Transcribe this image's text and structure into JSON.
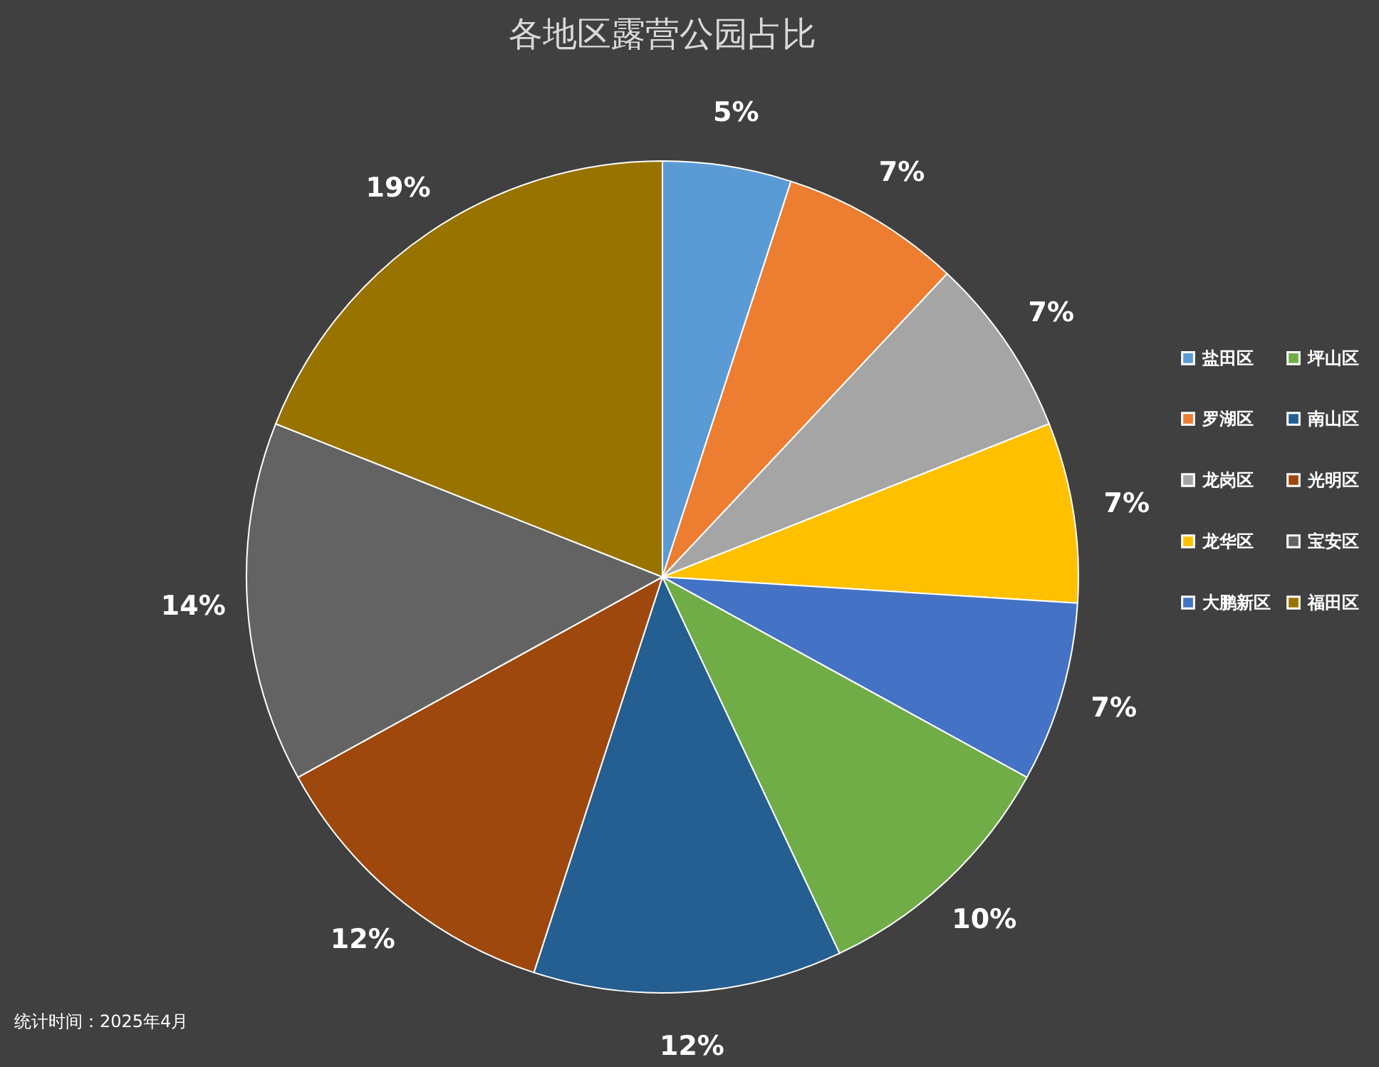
{
  "chart_data": {
    "type": "pie",
    "title": "各地区露营公园占比",
    "categories": [
      "盐田区",
      "罗湖区",
      "龙岗区",
      "龙华区",
      "大鹏新区",
      "坪山区",
      "南山区",
      "光明区",
      "宝安区",
      "福田区"
    ],
    "values": [
      5,
      7,
      7,
      7,
      7,
      10,
      12,
      12,
      14,
      19
    ],
    "value_labels": [
      "5%",
      "7%",
      "7%",
      "7%",
      "7%",
      "10%",
      "12%",
      "12%",
      "14%",
      "19%"
    ],
    "colors": [
      "#5b9bd5",
      "#ed7d31",
      "#a5a5a5",
      "#ffc000",
      "#4472c4",
      "#70ad47",
      "#255e91",
      "#9e480e",
      "#636363",
      "#997300"
    ],
    "legend": "right",
    "annotations": [
      "统计时间：2025年4月"
    ]
  }
}
